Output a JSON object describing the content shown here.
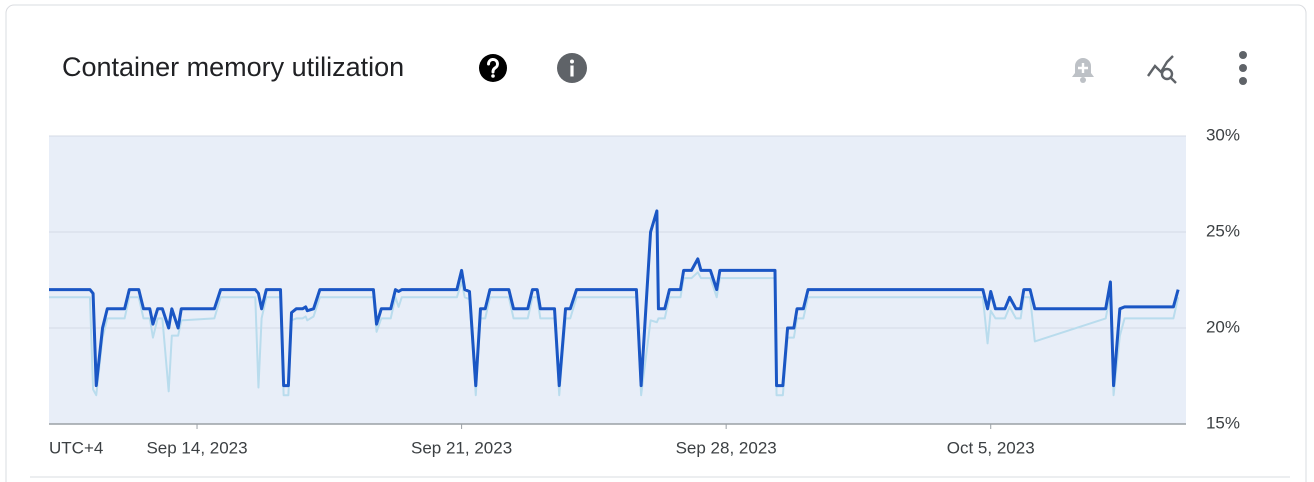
{
  "chart_data": {
    "type": "line",
    "title": "Container memory utilization",
    "timezone_label": "UTC+4",
    "xlim": [
      "2023-09-10T02:00",
      "2023-10-10T04:00"
    ],
    "xticks": [
      {
        "value": "2023-09-14T00:00",
        "label": "Sep 14, 2023"
      },
      {
        "value": "2023-09-21T00:00",
        "label": "Sep 21, 2023"
      },
      {
        "value": "2023-09-28T00:00",
        "label": "Sep 28, 2023"
      },
      {
        "value": "2023-10-05T00:00",
        "label": "Oct 5, 2023"
      }
    ],
    "ylim": [
      15,
      30
    ],
    "yticks": [
      {
        "value": 15,
        "label": "15%"
      },
      {
        "value": 20,
        "label": "20%"
      },
      {
        "value": 25,
        "label": "25%"
      },
      {
        "value": 30,
        "label": "30%"
      }
    ],
    "grid": true,
    "x": [
      "2023-09-10T02:00",
      "2023-09-11T04:00",
      "2023-09-11T06:00",
      "2023-09-11T08:00",
      "2023-09-11T12:00",
      "2023-09-11T15:00",
      "2023-09-12T02:00",
      "2023-09-12T05:00",
      "2023-09-12T11:00",
      "2023-09-12T14:00",
      "2023-09-12T18:00",
      "2023-09-12T20:00",
      "2023-09-12T23:00",
      "2023-09-13T02:00",
      "2023-09-13T06:00",
      "2023-09-13T08:00",
      "2023-09-13T12:00",
      "2023-09-13T14:00",
      "2023-09-14T11:00",
      "2023-09-14T15:00",
      "2023-09-15T13:00",
      "2023-09-15T15:00",
      "2023-09-15T17:00",
      "2023-09-15T20:00",
      "2023-09-16T05:00",
      "2023-09-16T07:00",
      "2023-09-16T10:00",
      "2023-09-16T12:00",
      "2023-09-16T15:00",
      "2023-09-16T19:00",
      "2023-09-16T21:00",
      "2023-09-16T22:00",
      "2023-09-17T02:00",
      "2023-09-17T06:00",
      "2023-09-18T16:00",
      "2023-09-18T18:00",
      "2023-09-18T21:00",
      "2023-09-19T03:00",
      "2023-09-19T06:00",
      "2023-09-19T08:00",
      "2023-09-19T10:00",
      "2023-09-20T21:00",
      "2023-09-21T00:00",
      "2023-09-21T02:00",
      "2023-09-21T05:00",
      "2023-09-21T09:00",
      "2023-09-21T12:00",
      "2023-09-21T15:00",
      "2023-09-21T18:00",
      "2023-09-22T06:00",
      "2023-09-22T09:00",
      "2023-09-22T18:00",
      "2023-09-22T21:00",
      "2023-09-23T00:00",
      "2023-09-23T02:00",
      "2023-09-23T11:00",
      "2023-09-23T14:00",
      "2023-09-23T18:00",
      "2023-09-23T21:00",
      "2023-09-24T01:00",
      "2023-09-25T15:00",
      "2023-09-25T18:00",
      "2023-09-26T00:00",
      "2023-09-26T04:00",
      "2023-09-26T05:00",
      "2023-09-26T09:00",
      "2023-09-26T12:00",
      "2023-09-26T19:00",
      "2023-09-26T21:00",
      "2023-09-27T02:00",
      "2023-09-27T06:00",
      "2023-09-27T08:00",
      "2023-09-27T14:00",
      "2023-09-27T18:00",
      "2023-09-27T20:00",
      "2023-09-29T07:00",
      "2023-09-29T08:00",
      "2023-09-29T12:00",
      "2023-09-29T15:00",
      "2023-09-29T19:00",
      "2023-09-29T21:00",
      "2023-09-30T01:00",
      "2023-09-30T04:00",
      "2023-10-04T19:00",
      "2023-10-04T22:00",
      "2023-10-05T00:00",
      "2023-10-05T03:00",
      "2023-10-05T09:00",
      "2023-10-05T12:00",
      "2023-10-05T16:00",
      "2023-10-05T19:00",
      "2023-10-05T21:00",
      "2023-10-06T01:00",
      "2023-10-06T04:00",
      "2023-10-08T01:00",
      "2023-10-08T04:00",
      "2023-10-08T06:00",
      "2023-10-08T10:00",
      "2023-10-08T13:00",
      "2023-10-09T20:00",
      "2023-10-09T23:00"
    ],
    "series": [
      {
        "color": "#b9dced",
        "width": 2,
        "values": [
          21.6,
          21.6,
          16.8,
          16.5,
          19.5,
          20.5,
          20.5,
          21.6,
          21.6,
          20.5,
          20.5,
          19.5,
          20.5,
          20.5,
          16.7,
          19.6,
          19.6,
          20.4,
          20.5,
          21.6,
          21.6,
          16.9,
          20.5,
          21.6,
          21.6,
          16.5,
          16.5,
          20.4,
          20.5,
          20.5,
          20.6,
          20.4,
          20.6,
          21.6,
          21.6,
          19.8,
          20.5,
          20.5,
          21.6,
          21.1,
          21.6,
          21.6,
          22.4,
          21.6,
          21.5,
          16.5,
          20.5,
          20.5,
          21.6,
          21.6,
          20.5,
          20.5,
          21.6,
          21.6,
          20.5,
          20.5,
          16.5,
          20.5,
          20.5,
          21.6,
          21.6,
          16.5,
          20.4,
          20.3,
          20.5,
          20.5,
          21.6,
          21.6,
          22.6,
          22.6,
          22.9,
          22.6,
          22.6,
          21.6,
          22.6,
          22.6,
          16.5,
          16.5,
          19.5,
          19.5,
          20.5,
          20.5,
          21.6,
          21.6,
          19.2,
          20.9,
          20.5,
          20.5,
          21.1,
          20.5,
          20.5,
          21.6,
          21.6,
          19.3,
          20.5,
          21.8,
          16.5,
          19.6,
          20.5,
          20.5,
          21.6
        ]
      },
      {
        "color": "#1a56c4",
        "width": 3,
        "values": [
          22,
          22,
          21.8,
          17,
          20,
          21,
          21,
          22,
          22,
          21,
          21,
          20.2,
          21,
          21,
          20,
          21,
          20,
          21,
          21,
          22,
          22,
          21.8,
          21,
          22,
          22,
          17,
          17,
          20.8,
          21,
          21,
          21.1,
          20.9,
          21,
          22,
          22,
          20.2,
          21,
          21,
          22,
          21.9,
          22,
          22,
          23,
          22,
          21.9,
          17,
          21,
          21,
          22,
          22,
          21,
          21,
          22,
          22,
          21,
          21,
          17,
          21,
          21,
          22,
          22,
          17,
          25,
          26.1,
          21,
          21,
          22,
          22,
          23,
          23,
          23.6,
          23,
          23,
          22,
          23,
          23,
          17,
          17,
          20,
          20,
          21,
          21,
          22,
          22,
          21,
          21.9,
          21,
          21,
          21.6,
          21,
          21,
          22,
          22,
          21,
          21,
          22.4,
          17,
          21,
          21.1,
          21.1,
          22
        ]
      }
    ]
  }
}
